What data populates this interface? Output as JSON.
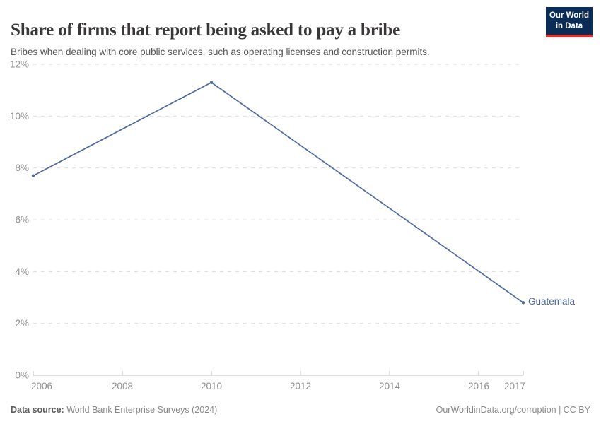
{
  "header": {
    "logo": {
      "line1": "Our World",
      "line2": "in Data"
    }
  },
  "chart_data": {
    "type": "line",
    "title": "Share of firms that report being asked to pay a bribe",
    "subtitle": "Bribes when dealing with core public services, such as operating licenses and construction permits.",
    "series": [
      {
        "name": "Guatemala",
        "x": [
          2006,
          2010,
          2017
        ],
        "values": [
          7.7,
          11.3,
          2.8
        ],
        "color": "#4c6a9c"
      }
    ],
    "entity_label": "Guatemala",
    "xlim": [
      2006,
      2017
    ],
    "ylim": [
      0,
      12
    ],
    "yticks": [
      0,
      2,
      4,
      6,
      8,
      10,
      12
    ],
    "ytick_labels": [
      "0%",
      "2%",
      "4%",
      "6%",
      "8%",
      "10%",
      "12%"
    ],
    "xticks": [
      2006,
      2008,
      2010,
      2012,
      2014,
      2016,
      2017
    ],
    "xtick_labels": [
      "2006",
      "2008",
      "2010",
      "2012",
      "2014",
      "2016",
      "2017"
    ],
    "grid": "dashed-horizontal",
    "legend_position": "end-of-line"
  },
  "footer": {
    "datasource_label": "Data source:",
    "datasource_value": " World Bank Enterprise Surveys (2024)",
    "credit": "OurWorldinData.org/corruption | CC BY"
  },
  "colors": {
    "line": "#4c6a9c",
    "grid": "#dcdcdc",
    "axis": "#bdbdbd",
    "tick_text": "#8f8f8f",
    "title_text": "#383636",
    "logo_bg": "#0b2c56",
    "logo_red": "#e0332e"
  }
}
